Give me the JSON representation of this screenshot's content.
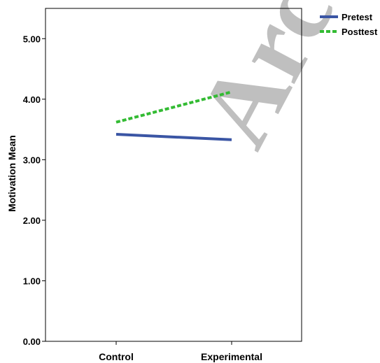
{
  "chart_data": {
    "type": "line",
    "categories": [
      "Control",
      "Experimental"
    ],
    "series": [
      {
        "name": "Pretest",
        "values": [
          3.42,
          3.33
        ],
        "color": "#3a55a4",
        "style": "solid"
      },
      {
        "name": "Posttest",
        "values": [
          3.62,
          4.12
        ],
        "color": "#33bb33",
        "style": "dashed"
      }
    ],
    "title": "",
    "xlabel": "",
    "ylabel": "Motivation Mean",
    "ylim": [
      0,
      5.5
    ],
    "yticks": [
      "0.00",
      "1.00",
      "2.00",
      "3.00",
      "4.00",
      "5.00"
    ],
    "grid": false,
    "legend_position": "top-right"
  },
  "watermark": "Arc"
}
